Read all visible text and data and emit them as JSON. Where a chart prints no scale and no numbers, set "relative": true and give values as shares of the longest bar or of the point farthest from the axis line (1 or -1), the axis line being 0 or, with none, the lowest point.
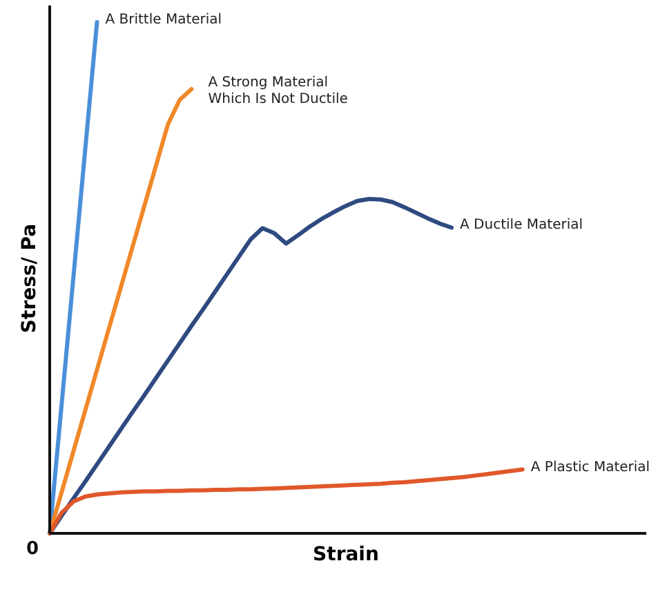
{
  "chart_data": {
    "type": "line",
    "relative": true,
    "xlabel": "Strain",
    "ylabel": "Stress/ Pa",
    "grid": false,
    "marker": "none",
    "line_style": "solid",
    "annotations": [
      "0"
    ],
    "categories": [
      null,
      null,
      null,
      null,
      null,
      null,
      null,
      null,
      null,
      null,
      null,
      null,
      null,
      null,
      null,
      null,
      null,
      null,
      null,
      null,
      null,
      null,
      null,
      null,
      null,
      null,
      null,
      null,
      null,
      null,
      null,
      null,
      null,
      null,
      null,
      null,
      null,
      null,
      null,
      null,
      null,
      null,
      null,
      null,
      null,
      null,
      null,
      null,
      null,
      null,
      null
    ],
    "series": [
      {
        "name": "A Brittle Material",
        "color": "#4a8fd8",
        "values": [
          0,
          0.25,
          0.5,
          0.75,
          1.0,
          null,
          null,
          null,
          null,
          null,
          null,
          null,
          null,
          null,
          null,
          null,
          null,
          null,
          null,
          null,
          null,
          null,
          null,
          null,
          null,
          null,
          null,
          null,
          null,
          null,
          null,
          null,
          null,
          null,
          null,
          null,
          null,
          null,
          null,
          null,
          null,
          null,
          null,
          null,
          null,
          null,
          null,
          null,
          null,
          null,
          null
        ]
      },
      {
        "name": "A Strong Material\nWhich Is Not Ductile",
        "color": "#f0882a",
        "values": [
          0,
          0.08,
          0.16,
          0.24,
          0.32,
          0.4,
          0.48,
          0.56,
          0.64,
          0.72,
          0.8,
          0.848,
          0.869,
          null,
          null,
          null,
          null,
          null,
          null,
          null,
          null,
          null,
          null,
          null,
          null,
          null,
          null,
          null,
          null,
          null,
          null,
          null,
          null,
          null,
          null,
          null,
          null,
          null,
          null,
          null,
          null,
          null,
          null,
          null,
          null,
          null,
          null,
          null,
          null,
          null,
          null
        ]
      },
      {
        "name": "A Ductile Material",
        "color": "#2e4a80",
        "values": [
          0,
          0.034,
          0.068,
          0.101,
          0.135,
          0.169,
          0.203,
          0.237,
          0.27,
          0.304,
          0.338,
          0.372,
          0.406,
          0.439,
          0.473,
          0.507,
          0.541,
          0.575,
          0.597,
          0.587,
          0.567,
          0.583,
          0.6,
          0.615,
          0.628,
          0.64,
          0.65,
          0.654,
          0.653,
          0.648,
          0.638,
          0.627,
          0.616,
          0.606,
          0.598,
          null,
          null,
          null,
          null,
          null,
          null,
          null,
          null,
          null,
          null,
          null,
          null,
          null,
          null,
          null,
          null
        ]
      },
      {
        "name": "A Plastic Material",
        "color": "#e0582a",
        "values": [
          0,
          0.04,
          0.062,
          0.072,
          0.076,
          0.078,
          0.08,
          0.081,
          0.082,
          0.082,
          0.083,
          0.083,
          0.084,
          0.084,
          0.085,
          0.085,
          0.086,
          0.086,
          0.087,
          0.088,
          0.089,
          0.09,
          0.091,
          0.092,
          0.093,
          0.094,
          0.095,
          0.096,
          0.097,
          0.099,
          0.1,
          0.102,
          0.104,
          0.106,
          0.108,
          0.11,
          0.113,
          0.116,
          0.119,
          0.122,
          0.125,
          null,
          null,
          null,
          null,
          null,
          null,
          null,
          null,
          null,
          null
        ]
      }
    ]
  }
}
